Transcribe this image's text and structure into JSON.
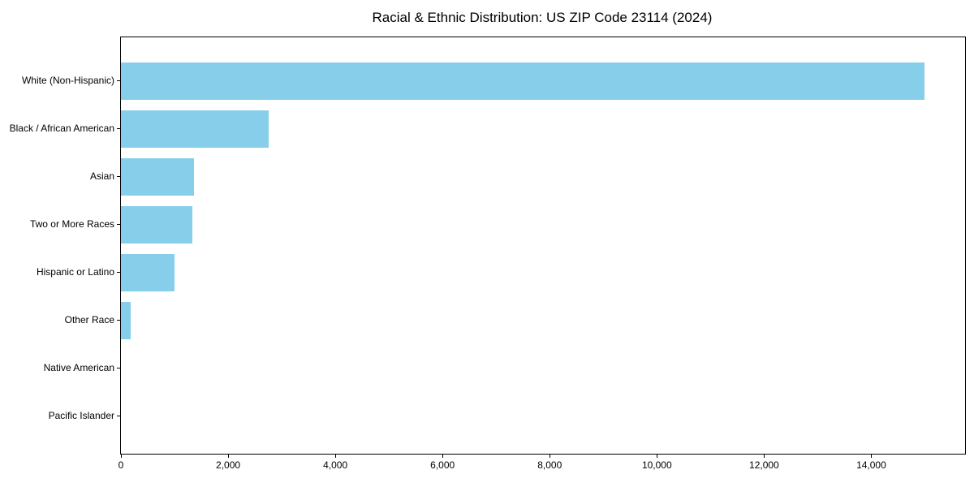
{
  "page": {
    "background": "#ffffff"
  },
  "chart_data": {
    "type": "bar",
    "orientation": "horizontal",
    "title": "Racial & Ethnic Distribution: US ZIP Code 23114 (2024)",
    "categories": [
      "White (Non-Hispanic)",
      "Black / African American",
      "Asian",
      "Two or More Races",
      "Hispanic or Latino",
      "Other Race",
      "Native American",
      "Pacific Islander"
    ],
    "values": [
      15000,
      2750,
      1370,
      1340,
      1000,
      180,
      0,
      0
    ],
    "xlabel": "",
    "ylabel": "",
    "xlim": [
      0,
      15750
    ],
    "xticks": [
      0,
      2000,
      4000,
      6000,
      8000,
      10000,
      12000,
      14000
    ],
    "xtick_labels": [
      "0",
      "2,000",
      "4,000",
      "6,000",
      "8,000",
      "10,000",
      "12,000",
      "14,000"
    ],
    "bar_color": "#87CEEB",
    "axis_color": "#000000",
    "text_color": "#000000",
    "grid": false,
    "legend_position": "none"
  }
}
